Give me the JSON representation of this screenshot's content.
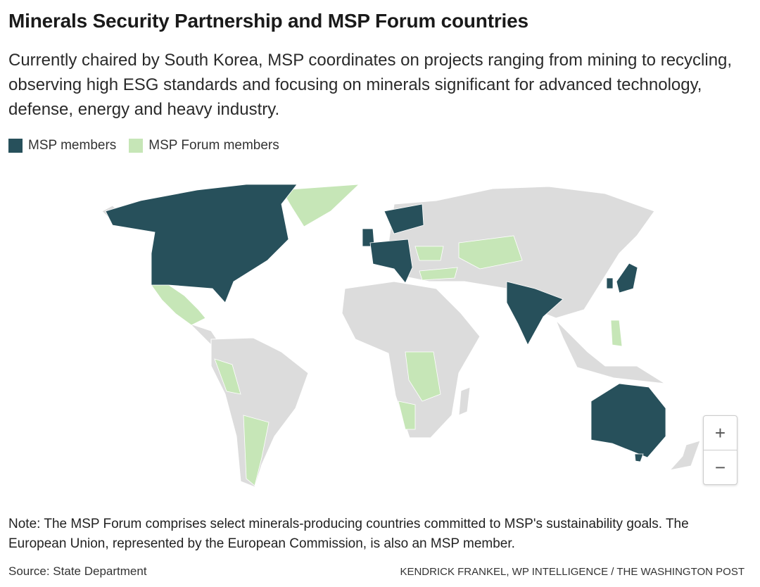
{
  "header": {
    "title": "Minerals Security Partnership and MSP Forum countries",
    "subtitle": "Currently chaired by South Korea, MSP coordinates on projects ranging from mining to recycling, observing high ESG standards and focusing on minerals significant for advanced technology, defense, energy and heavy industry."
  },
  "legend": {
    "items": [
      {
        "label": "MSP members"
      },
      {
        "label": "MSP Forum members"
      }
    ]
  },
  "controls": {
    "zoom_in": "+",
    "zoom_out": "−"
  },
  "note": "Note: The MSP Forum comprises select minerals-producing countries committed to MSP's sustainability goals. The European Union, represented by the European Commission, is also an MSP member.",
  "footer": {
    "source": "Source: State Department",
    "credit": "KENDRICK FRANKEL, WP INTELLIGENCE / THE WASHINGTON POST"
  }
}
